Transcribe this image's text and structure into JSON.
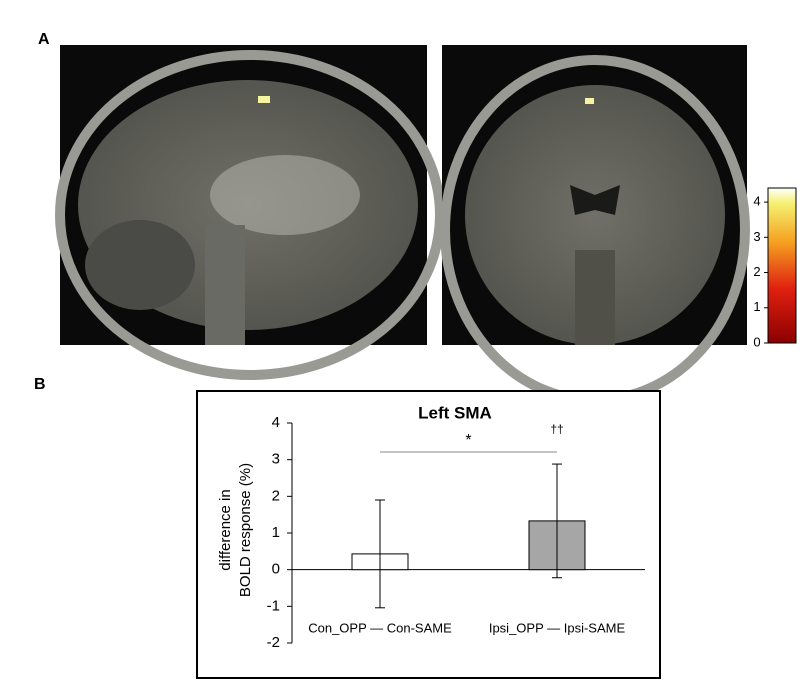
{
  "panel_labels": [
    "A",
    "B"
  ],
  "colorbar": {
    "lim": [
      0,
      4.4
    ],
    "ticks": [
      0,
      1,
      2,
      3,
      4
    ]
  },
  "chart_data": {
    "type": "bar",
    "title": "Left SMA",
    "y_label": [
      "difference in",
      "BOLD response (%)"
    ],
    "categories": [
      "Con_OPP — Con-SAME",
      "Ipsi_OPP — Ipsi-SAME"
    ],
    "values": [
      0.43,
      1.33
    ],
    "errors": [
      1.47,
      1.55
    ],
    "colors": [
      "#ffffff",
      "#a6a6a6"
    ],
    "ylim": [
      -2,
      4
    ],
    "yticks": [
      -2,
      -1,
      0,
      1,
      2,
      3,
      4
    ],
    "annotations": [
      "*",
      "††"
    ]
  }
}
